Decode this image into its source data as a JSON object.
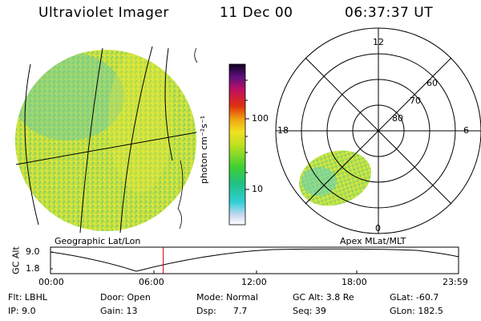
{
  "header": {
    "instrument": "Ultraviolet Imager",
    "date": "11 Dec 00",
    "time": "06:37:37 UT"
  },
  "colorbar": {
    "label": "photon cm⁻²s⁻¹",
    "tick_labels": [
      "100",
      "10"
    ]
  },
  "geographic_panel": {
    "caption": "Geographic Lat/Lon"
  },
  "polar_panel": {
    "caption": "Apex MLat/MLT",
    "mlt_labels": [
      "12",
      "18",
      "6",
      "0"
    ],
    "lat_labels": [
      "60",
      "70",
      "80"
    ]
  },
  "altitude_plot": {
    "ylabel": "GC Alt",
    "ytick_labels": [
      "9.0",
      "1.8"
    ],
    "xtick_labels": [
      "00:00",
      "06:00",
      "12:00",
      "18:00",
      "23:59"
    ],
    "current_time_hours": 6.627
  },
  "footer": {
    "flt": "Flt: LBHL",
    "ip": "IP:  9.0",
    "door": "Door: Open",
    "gain": "Gain: 13",
    "mode": "Mode: Normal",
    "dsp": "Dsp:      7.7",
    "gcalt": "GC Alt: 3.8 Re",
    "seq": "Seq: 39",
    "glat": "GLat: -60.7",
    "glon": "GLon: 182.5"
  },
  "colors": {
    "earth_fill": "#c8e040",
    "polar_fill": "#b8e048"
  }
}
